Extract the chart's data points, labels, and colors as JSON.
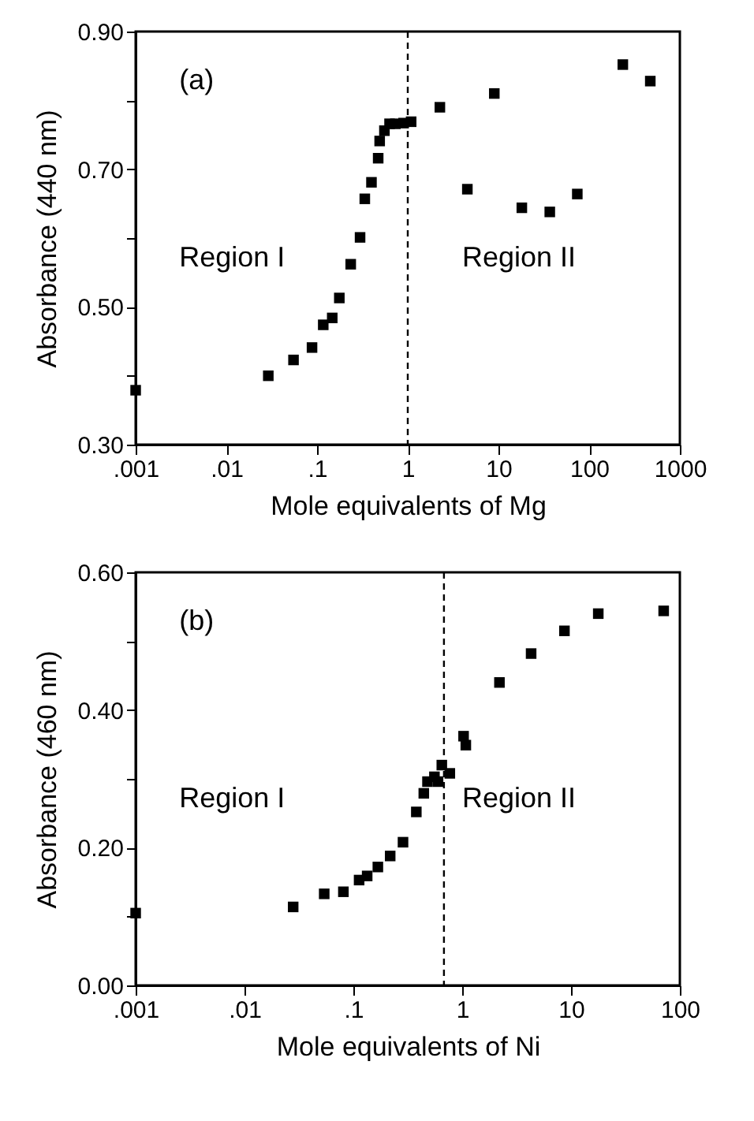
{
  "chart_data": [
    {
      "type": "scatter",
      "xlabel": "Mole equivalents of Mg",
      "ylabel": "Absorbance (440 nm)",
      "log": "x",
      "marker": "square",
      "grid": false,
      "x": [
        0.001,
        0.029,
        0.055,
        0.088,
        0.117,
        0.147,
        0.176,
        0.235,
        0.298,
        0.336,
        0.398,
        0.472,
        0.49,
        0.553,
        0.63,
        0.73,
        0.9,
        1.09,
        2.26,
        4.54,
        9.0,
        18.1,
        36.8,
        74,
        235,
        472
      ],
      "series": [
        {
          "color": "#000000",
          "values": [
            0.379,
            0.4,
            0.423,
            0.441,
            0.474,
            0.484,
            0.513,
            0.562,
            0.601,
            0.657,
            0.681,
            0.716,
            0.741,
            0.756,
            0.766,
            0.766,
            0.767,
            0.769,
            0.79,
            0.671,
            0.81,
            0.644,
            0.638,
            0.664,
            0.852,
            0.828
          ]
        }
      ],
      "xlim": [
        0.001,
        1000
      ],
      "xticks": [
        {
          "value": 0.001,
          "label": ".001"
        },
        {
          "value": 0.01,
          "label": ".01"
        },
        {
          "value": 0.1,
          "label": ".1"
        },
        1,
        10,
        100,
        1000
      ],
      "ylim": [
        0.3,
        0.9
      ],
      "yticks": [
        {
          "value": 0.3,
          "label": "0.30"
        },
        {
          "value": 0.4,
          "label": null
        },
        {
          "value": 0.5,
          "label": "0.50"
        },
        {
          "value": 0.6,
          "label": null
        },
        {
          "value": 0.7,
          "label": "0.70"
        },
        {
          "value": 0.8,
          "label": null
        },
        {
          "value": 0.9,
          "label": "0.90"
        }
      ],
      "ref_lines": [
        {
          "axis": "x",
          "value": 1,
          "color": "#000000",
          "line_style": "dashed"
        }
      ],
      "annotations": [
        "(a)",
        "Region I",
        "Region II"
      ]
    },
    {
      "type": "scatter",
      "xlabel": "Mole equivalents of Ni",
      "ylabel": "Absorbance (460 nm)",
      "log": "x",
      "marker": "square",
      "grid": false,
      "x": [
        0.001,
        0.028,
        0.054,
        0.081,
        0.113,
        0.134,
        0.168,
        0.218,
        0.286,
        0.379,
        0.444,
        0.48,
        0.556,
        0.6,
        0.65,
        0.77,
        1.03,
        1.08,
        2.2,
        4.3,
        8.7,
        17.8,
        71
      ],
      "series": [
        {
          "color": "#000000",
          "values": [
            0.105,
            0.114,
            0.133,
            0.136,
            0.153,
            0.159,
            0.172,
            0.188,
            0.208,
            0.252,
            0.279,
            0.296,
            0.303,
            0.296,
            0.32,
            0.308,
            0.362,
            0.349,
            0.44,
            0.482,
            0.515,
            0.54,
            0.544
          ]
        }
      ],
      "xlim": [
        0.001,
        100
      ],
      "xticks": [
        {
          "value": 0.001,
          "label": ".001"
        },
        {
          "value": 0.01,
          "label": ".01"
        },
        {
          "value": 0.1,
          "label": ".1"
        },
        1,
        10,
        100
      ],
      "ylim": [
        0.0,
        0.6
      ],
      "yticks": [
        {
          "value": 0.0,
          "label": "0.00"
        },
        {
          "value": 0.1,
          "label": null
        },
        {
          "value": 0.2,
          "label": "0.20"
        },
        {
          "value": 0.3,
          "label": null
        },
        {
          "value": 0.4,
          "label": "0.40"
        },
        {
          "value": 0.5,
          "label": null
        },
        {
          "value": 0.6,
          "label": "0.60"
        }
      ],
      "ref_lines": [
        {
          "axis": "x",
          "value": 0.68,
          "color": "#000000",
          "line_style": "dashed"
        }
      ],
      "annotations": [
        "(b)",
        "Region I",
        "Region II"
      ]
    }
  ]
}
